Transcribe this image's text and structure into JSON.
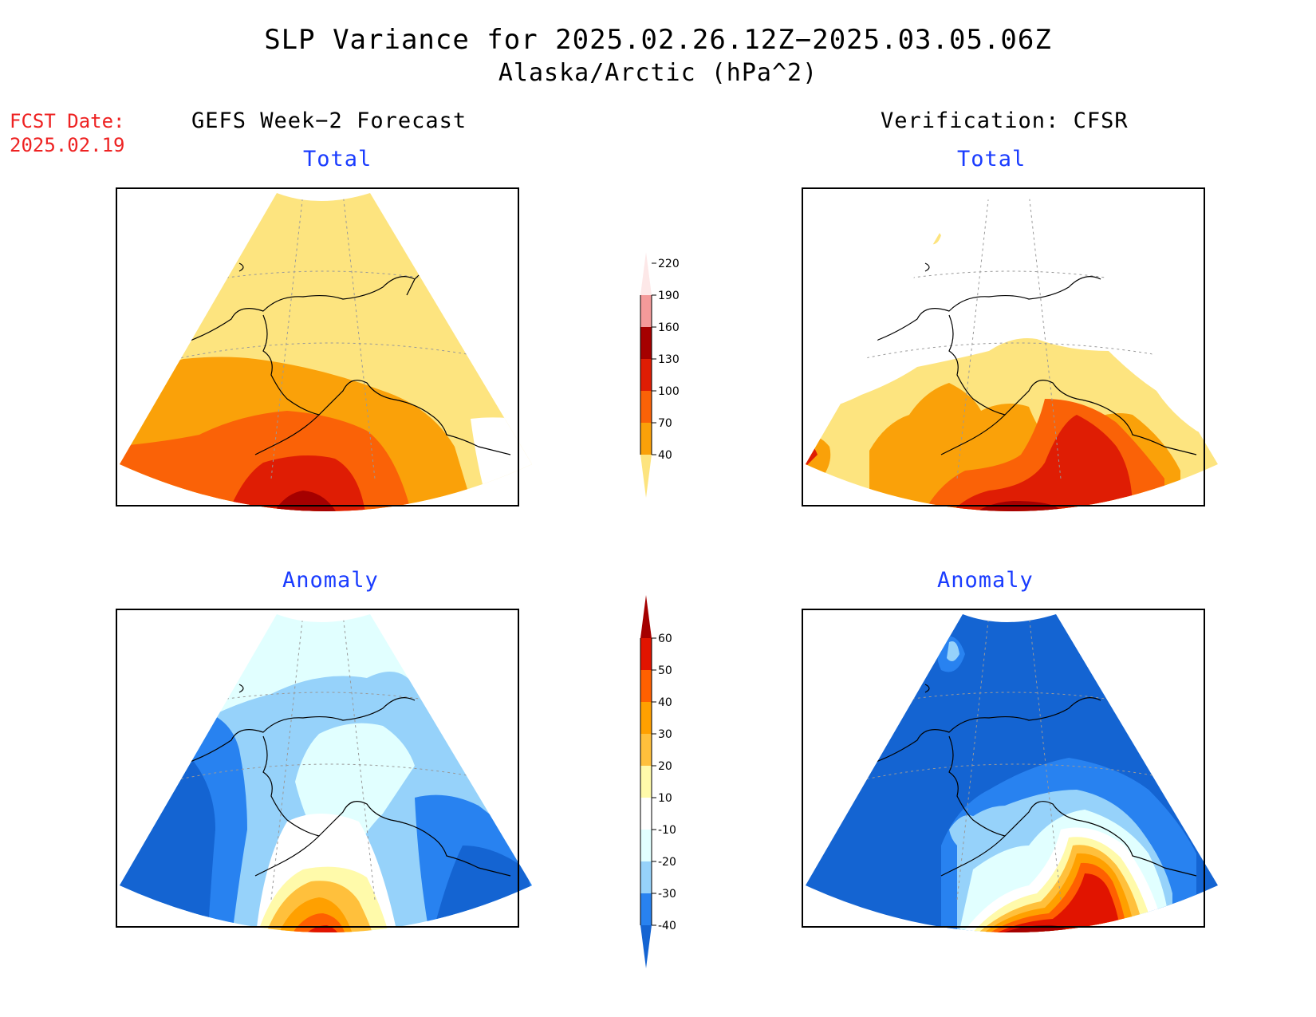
{
  "header": {
    "title": "SLP Variance for 2025.02.26.12Z−2025.03.05.06Z",
    "subtitle": "Alaska/Arctic (hPa^2)",
    "fcst_label": "FCST Date:",
    "fcst_date": "2025.02.19"
  },
  "columns": {
    "left": "GEFS Week−2 Forecast",
    "right": "Verification: CFSR"
  },
  "panels": {
    "top_left": "Total",
    "top_right": "Total",
    "bottom_left": "Anomaly",
    "bottom_right": "Anomaly"
  },
  "colorbars": {
    "total": {
      "levels": [
        "40",
        "70",
        "100",
        "130",
        "160",
        "190",
        "220"
      ],
      "colors": [
        "#fde47f",
        "#faa109",
        "#fa6207",
        "#df1d04",
        "#a50000",
        "#f49a9a",
        "#fde8e8"
      ]
    },
    "anomaly": {
      "levels": [
        "-40",
        "-30",
        "-20",
        "-10",
        "10",
        "20",
        "30",
        "40",
        "50",
        "60"
      ],
      "colors": [
        "#1464d2",
        "#2882f0",
        "#96d2fa",
        "#e1ffff",
        "#ffffff",
        "#fffaaa",
        "#ffc03c",
        "#ffa000",
        "#ff6000",
        "#e11400",
        "#a50000"
      ]
    }
  },
  "map_colors": {
    "white": "#ffffff",
    "t40": "#fde47f",
    "t70": "#faa109",
    "t100": "#fa6207",
    "t130": "#df1d04",
    "t160": "#a50000",
    "t190": "#f49a9a",
    "t220": "#fde8e8",
    "a_m40": "#1464d2",
    "a_m30": "#2882f0",
    "a_m20": "#96d2fa",
    "a_m10": "#e1ffff",
    "a_10": "#fffaaa",
    "a_20": "#ffc03c",
    "a_30": "#ffa000",
    "a_40": "#ff6000",
    "a_50": "#e11400",
    "a_60": "#a50000"
  }
}
